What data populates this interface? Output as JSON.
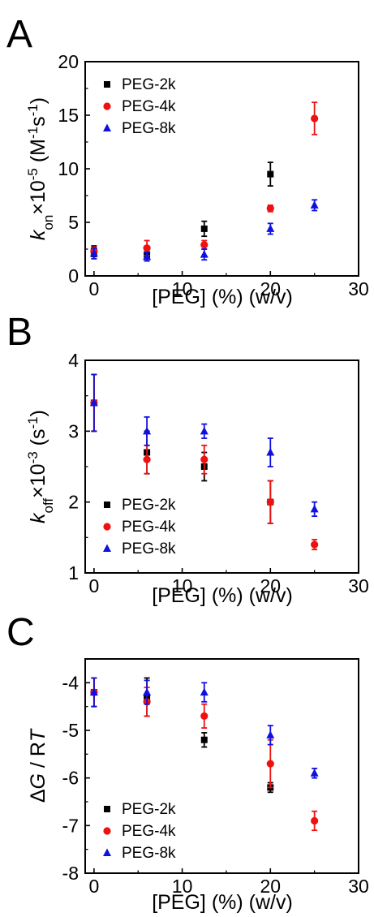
{
  "figure": {
    "x_axis_label": "[PEG] (%) (w/v)",
    "legend": [
      "PEG-2k",
      "PEG-4k",
      "PEG-8k"
    ]
  },
  "colors": {
    "PEG-2k": "#000000",
    "PEG-4k": "#ee1111",
    "PEG-8k": "#1010e0"
  },
  "chart_data": [
    {
      "panel": "A",
      "type": "scatter",
      "ylabel_parts": {
        "symbol": "k",
        "subscript": "on",
        "scale": "×10",
        "exponent": "-5",
        "unit": " (M",
        "unit_exp1": "-1",
        "unit_mid": "s",
        "unit_exp2": "-1",
        "unit_end": ")"
      },
      "xlabel": "[PEG] (%) (w/v)",
      "xlim": [
        -1,
        30
      ],
      "ylim": [
        0,
        20
      ],
      "xticks": [
        0,
        10,
        20,
        30
      ],
      "yticks": [
        0,
        5,
        10,
        15,
        20
      ],
      "legend_position": "upper-left",
      "series": [
        {
          "name": "PEG-2k",
          "marker": "square",
          "points": [
            [
              0,
              2.3,
              0.5
            ],
            [
              6,
              2.0,
              0.6
            ],
            [
              12.5,
              4.4,
              0.7
            ],
            [
              20,
              9.5,
              1.1
            ]
          ]
        },
        {
          "name": "PEG-4k",
          "marker": "circle",
          "points": [
            [
              0,
              2.3,
              0.4
            ],
            [
              6,
              2.6,
              0.7
            ],
            [
              12.5,
              2.9,
              0.4
            ],
            [
              20,
              6.3,
              0.3
            ],
            [
              25,
              14.7,
              1.5
            ]
          ]
        },
        {
          "name": "PEG-8k",
          "marker": "triangle",
          "points": [
            [
              0,
              2.1,
              0.5
            ],
            [
              6,
              1.8,
              0.4
            ],
            [
              12.5,
              2.0,
              0.5
            ],
            [
              20,
              4.4,
              0.5
            ],
            [
              25,
              6.6,
              0.5
            ]
          ]
        }
      ]
    },
    {
      "panel": "B",
      "type": "scatter",
      "ylabel_parts": {
        "symbol": "k",
        "subscript": "off",
        "scale": "×10",
        "exponent": "-3",
        "unit": " (s",
        "unit_exp1": "-1",
        "unit_end": ")"
      },
      "xlabel": "[PEG] (%) (w/v)",
      "xlim": [
        -1,
        30
      ],
      "ylim": [
        1,
        4
      ],
      "xticks": [
        0,
        10,
        20,
        30
      ],
      "yticks": [
        1,
        2,
        3,
        4
      ],
      "legend_position": "lower-left",
      "series": [
        {
          "name": "PEG-2k",
          "marker": "square",
          "points": [
            [
              0,
              3.4,
              0.4
            ],
            [
              6,
              2.7,
              0.3
            ],
            [
              12.5,
              2.5,
              0.2
            ],
            [
              20,
              2.0,
              0.3
            ]
          ]
        },
        {
          "name": "PEG-4k",
          "marker": "circle",
          "points": [
            [
              0,
              3.4,
              0.4
            ],
            [
              6,
              2.6,
              0.2
            ],
            [
              12.5,
              2.6,
              0.2
            ],
            [
              20,
              2.0,
              0.3
            ],
            [
              25,
              1.4,
              0.07
            ]
          ]
        },
        {
          "name": "PEG-8k",
          "marker": "triangle",
          "points": [
            [
              0,
              3.4,
              0.4
            ],
            [
              6,
              3.0,
              0.2
            ],
            [
              12.5,
              3.0,
              0.1
            ],
            [
              20,
              2.7,
              0.2
            ],
            [
              25,
              1.9,
              0.1
            ]
          ]
        }
      ]
    },
    {
      "panel": "C",
      "type": "scatter",
      "ylabel_parts": {
        "prefix": "Δ",
        "symbol": "G",
        "rest": " / R",
        "symbol2": "T"
      },
      "xlabel": "[PEG] (%) (w/v)",
      "xlim": [
        -1,
        30
      ],
      "ylim": [
        -8,
        -3.5
      ],
      "xticks": [
        0,
        10,
        20,
        30
      ],
      "yticks": [
        -4,
        -5,
        -6,
        -7,
        -8
      ],
      "legend_position": "lower-left",
      "series": [
        {
          "name": "PEG-2k",
          "marker": "square",
          "points": [
            [
              0,
              -4.2,
              0.3
            ],
            [
              6,
              -4.3,
              0.4
            ],
            [
              12.5,
              -5.2,
              0.15
            ],
            [
              20,
              -6.2,
              0.1
            ]
          ]
        },
        {
          "name": "PEG-4k",
          "marker": "circle",
          "points": [
            [
              0,
              -4.2,
              0.3
            ],
            [
              6,
              -4.4,
              0.3
            ],
            [
              12.5,
              -4.7,
              0.25
            ],
            [
              20,
              -5.7,
              0.5
            ],
            [
              25,
              -6.9,
              0.2
            ]
          ]
        },
        {
          "name": "PEG-8k",
          "marker": "triangle",
          "points": [
            [
              0,
              -4.2,
              0.3
            ],
            [
              6,
              -4.2,
              0.25
            ],
            [
              12.5,
              -4.2,
              0.2
            ],
            [
              20,
              -5.1,
              0.2
            ],
            [
              25,
              -5.9,
              0.1
            ]
          ]
        }
      ]
    }
  ]
}
